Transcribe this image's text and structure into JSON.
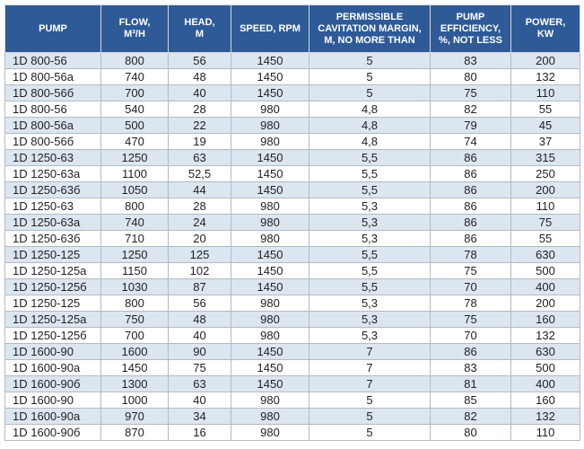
{
  "colors": {
    "header_bg": "#2e5b97",
    "header_text": "#ffffff",
    "row_alt_bg": "#dce6f1",
    "row_bg": "#ffffff",
    "grid_line": "#b3bac4",
    "body_text": "#1f1f1f"
  },
  "table": {
    "columns": [
      "PUMP",
      "FLOW,\nM³/H",
      "HEAD,\nM",
      "SPEED, RPM",
      "PERMISSIBLE\nCAVITATION MARGIN,\nM, NO MORE THAN",
      "PUMP\nEFFICIENCY,\n%, NOT LESS",
      "POWER,\nKW"
    ],
    "column_keys": [
      "pump",
      "flow",
      "head",
      "speed",
      "cavitation-margin",
      "efficiency",
      "power"
    ],
    "rows": [
      [
        "1D 800-56",
        "800",
        "56",
        "1450",
        "5",
        "83",
        "200"
      ],
      [
        "1D 800-56a",
        "740",
        "48",
        "1450",
        "5",
        "80",
        "132"
      ],
      [
        "1D 800-56б",
        "700",
        "40",
        "1450",
        "5",
        "75",
        "110"
      ],
      [
        "1D 800-56",
        "540",
        "28",
        "980",
        "4,8",
        "82",
        "55"
      ],
      [
        "1D 800-56a",
        "500",
        "22",
        "980",
        "4,8",
        "79",
        "45"
      ],
      [
        "1D 800-56б",
        "470",
        "19",
        "980",
        "4,8",
        "74",
        "37"
      ],
      [
        "1D 1250-63",
        "1250",
        "63",
        "1450",
        "5,5",
        "86",
        "315"
      ],
      [
        "1D 1250-63a",
        "1100",
        "52,5",
        "1450",
        "5,5",
        "86",
        "250"
      ],
      [
        "1D 1250-63б",
        "1050",
        "44",
        "1450",
        "5,5",
        "86",
        "200"
      ],
      [
        "1D 1250-63",
        "800",
        "28",
        "980",
        "5,3",
        "86",
        "110"
      ],
      [
        "1D 1250-63a",
        "740",
        "24",
        "980",
        "5,3",
        "86",
        "75"
      ],
      [
        "1D 1250-63б",
        "710",
        "20",
        "980",
        "5,3",
        "86",
        "55"
      ],
      [
        "1D 1250-125",
        "1250",
        "125",
        "1450",
        "5,5",
        "78",
        "630"
      ],
      [
        "1D 1250-125a",
        "1150",
        "102",
        "1450",
        "5,5",
        "75",
        "500"
      ],
      [
        "1D 1250-125б",
        "1030",
        "87",
        "1450",
        "5,5",
        "70",
        "400"
      ],
      [
        "1D 1250-125",
        "800",
        "56",
        "980",
        "5,3",
        "78",
        "200"
      ],
      [
        "1D 1250-125a",
        "750",
        "48",
        "980",
        "5,3",
        "75",
        "160"
      ],
      [
        "1D 1250-125б",
        "700",
        "40",
        "980",
        "5,3",
        "70",
        "132"
      ],
      [
        "1D 1600-90",
        "1600",
        "90",
        "1450",
        "7",
        "86",
        "630"
      ],
      [
        "1D 1600-90a",
        "1450",
        "75",
        "1450",
        "7",
        "83",
        "500"
      ],
      [
        "1D 1600-90б",
        "1300",
        "63",
        "1450",
        "7",
        "81",
        "400"
      ],
      [
        "1D 1600-90",
        "1000",
        "40",
        "980",
        "5",
        "85",
        "160"
      ],
      [
        "1D 1600-90a",
        "970",
        "34",
        "980",
        "5",
        "82",
        "132"
      ],
      [
        "1D 1600-90б",
        "870",
        "16",
        "980",
        "5",
        "80",
        "110"
      ]
    ]
  }
}
